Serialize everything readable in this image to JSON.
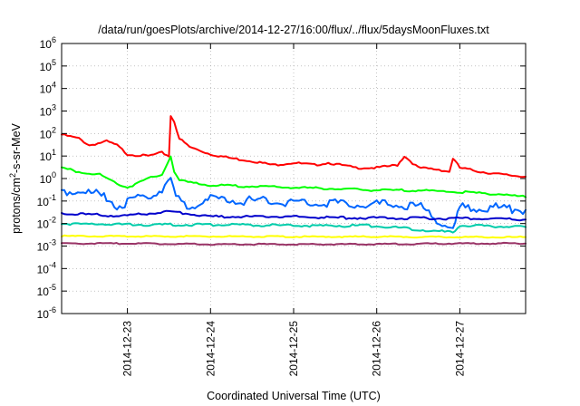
{
  "chart_data": {
    "type": "line",
    "title": "/data/run/goesPlots/archive/2014-12-27/16:00/flux/../flux/5daysMoonFluxes.txt",
    "xlabel": "Coordinated Universal Time (UTC)",
    "ylabel": {
      "base": "protons/cm",
      "sup": "2",
      "rest": "-s-sr-MeV"
    },
    "x_scale": "time",
    "y_scale": "log",
    "xlim": [
      "2014-12-22T05:00",
      "2014-12-27T19:00"
    ],
    "ylim": [
      1e-06,
      1000000.0
    ],
    "grid": true,
    "legend": "none",
    "x_ticks": [
      {
        "label": "2014-12-23",
        "value": "2014-12-23T00:00"
      },
      {
        "label": "2014-12-24",
        "value": "2014-12-24T00:00"
      },
      {
        "label": "2014-12-25",
        "value": "2014-12-25T00:00"
      },
      {
        "label": "2014-12-26",
        "value": "2014-12-26T00:00"
      },
      {
        "label": "2014-12-27",
        "value": "2014-12-27T00:00"
      }
    ],
    "y_ticks": [
      {
        "base": "10",
        "exp": "6",
        "value": 1000000.0
      },
      {
        "base": "10",
        "exp": "5",
        "value": 100000.0
      },
      {
        "base": "10",
        "exp": "4",
        "value": 10000.0
      },
      {
        "base": "10",
        "exp": "3",
        "value": 1000.0
      },
      {
        "base": "10",
        "exp": "2",
        "value": 100.0
      },
      {
        "base": "10",
        "exp": "1",
        "value": 10.0
      },
      {
        "base": "10",
        "exp": "0",
        "value": 1
      },
      {
        "base": "10",
        "exp": "-1",
        "value": 0.1
      },
      {
        "base": "10",
        "exp": "-2",
        "value": 0.01
      },
      {
        "base": "10",
        "exp": "-3",
        "value": 0.001
      },
      {
        "base": "10",
        "exp": "-4",
        "value": 0.0001
      },
      {
        "base": "10",
        "exp": "-5",
        "value": 1e-05
      },
      {
        "base": "10",
        "exp": "-6",
        "value": 1e-06
      }
    ],
    "series": [
      {
        "color": "#ff0000",
        "x": [
          "2014-12-22T05:00",
          "2014-12-22T10:00",
          "2014-12-22T13:00",
          "2014-12-22T18:00",
          "2014-12-22T21:00",
          "2014-12-23T00:00",
          "2014-12-23T06:00",
          "2014-12-23T10:00",
          "2014-12-23T12:00",
          "2014-12-23T12:30",
          "2014-12-23T13:30",
          "2014-12-23T15:00",
          "2014-12-23T18:00",
          "2014-12-24T00:00",
          "2014-12-24T06:00",
          "2014-12-24T12:00",
          "2014-12-24T18:00",
          "2014-12-25T00:00",
          "2014-12-25T06:00",
          "2014-12-25T10:00",
          "2014-12-25T18:00",
          "2014-12-26T00:00",
          "2014-12-26T06:00",
          "2014-12-26T08:00",
          "2014-12-26T12:00",
          "2014-12-26T18:00",
          "2014-12-26T21:00",
          "2014-12-26T22:00",
          "2014-12-27T00:00",
          "2014-12-27T06:00",
          "2014-12-27T12:00",
          "2014-12-27T19:00"
        ],
        "y": [
          90,
          60,
          30,
          45,
          30,
          12,
          10,
          14,
          10,
          600,
          350,
          60,
          25,
          12,
          8,
          6,
          4,
          5,
          4,
          5,
          3,
          3,
          4,
          10,
          3,
          2.5,
          2,
          8,
          3,
          2,
          1.5,
          1.2
        ]
      },
      {
        "color": "#00ff00",
        "x": [
          "2014-12-22T05:00",
          "2014-12-22T10:00",
          "2014-12-22T16:00",
          "2014-12-22T21:00",
          "2014-12-23T00:00",
          "2014-12-23T06:00",
          "2014-12-23T10:00",
          "2014-12-23T12:30",
          "2014-12-23T13:30",
          "2014-12-23T15:00",
          "2014-12-24T00:00",
          "2014-12-24T12:00",
          "2014-12-25T00:00",
          "2014-12-25T12:00",
          "2014-12-26T00:00",
          "2014-12-26T12:00",
          "2014-12-27T00:00",
          "2014-12-27T12:00",
          "2014-12-27T19:00"
        ],
        "y": [
          3,
          2,
          1.5,
          0.6,
          0.4,
          1.0,
          1.5,
          10,
          2,
          0.8,
          0.5,
          0.45,
          0.4,
          0.35,
          0.3,
          0.3,
          0.25,
          0.2,
          0.15
        ]
      },
      {
        "color": "#0066ff",
        "x": [
          "2014-12-22T05:00",
          "2014-12-22T12:00",
          "2014-12-22T18:00",
          "2014-12-22T21:00",
          "2014-12-23T00:00",
          "2014-12-23T06:00",
          "2014-12-23T10:00",
          "2014-12-23T12:30",
          "2014-12-23T14:00",
          "2014-12-23T18:00",
          "2014-12-24T00:00",
          "2014-12-24T12:00",
          "2014-12-25T00:00",
          "2014-12-25T12:00",
          "2014-12-26T00:00",
          "2014-12-26T12:00",
          "2014-12-26T22:00",
          "2014-12-27T00:00",
          "2014-12-27T12:00",
          "2014-12-27T19:00"
        ],
        "y": [
          0.3,
          0.25,
          0.15,
          0.06,
          0.08,
          0.2,
          0.3,
          0.8,
          0.15,
          0.05,
          0.12,
          0.1,
          0.09,
          0.08,
          0.07,
          0.06,
          0.005,
          0.05,
          0.05,
          0.04
        ]
      },
      {
        "color": "#0000cc",
        "x": [
          "2014-12-22T05:00",
          "2014-12-22T12:00",
          "2014-12-23T00:00",
          "2014-12-23T12:00",
          "2014-12-24T00:00",
          "2014-12-24T12:00",
          "2014-12-25T00:00",
          "2014-12-25T12:00",
          "2014-12-26T00:00",
          "2014-12-26T12:00",
          "2014-12-27T00:00",
          "2014-12-27T12:00",
          "2014-12-27T19:00"
        ],
        "y": [
          0.03,
          0.025,
          0.022,
          0.035,
          0.02,
          0.02,
          0.02,
          0.018,
          0.018,
          0.017,
          0.017,
          0.016,
          0.015
        ]
      },
      {
        "color": "#00ccaa",
        "x": [
          "2014-12-22T05:00",
          "2014-12-23T00:00",
          "2014-12-24T00:00",
          "2014-12-25T00:00",
          "2014-12-26T00:00",
          "2014-12-26T22:00",
          "2014-12-27T00:00",
          "2014-12-27T19:00"
        ],
        "y": [
          0.01,
          0.009,
          0.009,
          0.008,
          0.008,
          0.004,
          0.008,
          0.007
        ]
      },
      {
        "color": "#ffff00",
        "x": [
          "2014-12-22T05:00",
          "2014-12-23T00:00",
          "2014-12-24T00:00",
          "2014-12-25T00:00",
          "2014-12-26T00:00",
          "2014-12-27T00:00",
          "2014-12-27T19:00"
        ],
        "y": [
          0.0028,
          0.0027,
          0.0027,
          0.0026,
          0.0026,
          0.0025,
          0.0025
        ]
      },
      {
        "color": "#993366",
        "x": [
          "2014-12-22T05:00",
          "2014-12-23T00:00",
          "2014-12-24T00:00",
          "2014-12-25T00:00",
          "2014-12-26T00:00",
          "2014-12-27T00:00",
          "2014-12-27T19:00"
        ],
        "y": [
          0.0013,
          0.0013,
          0.0012,
          0.0012,
          0.0012,
          0.0013,
          0.0013
        ]
      }
    ]
  }
}
